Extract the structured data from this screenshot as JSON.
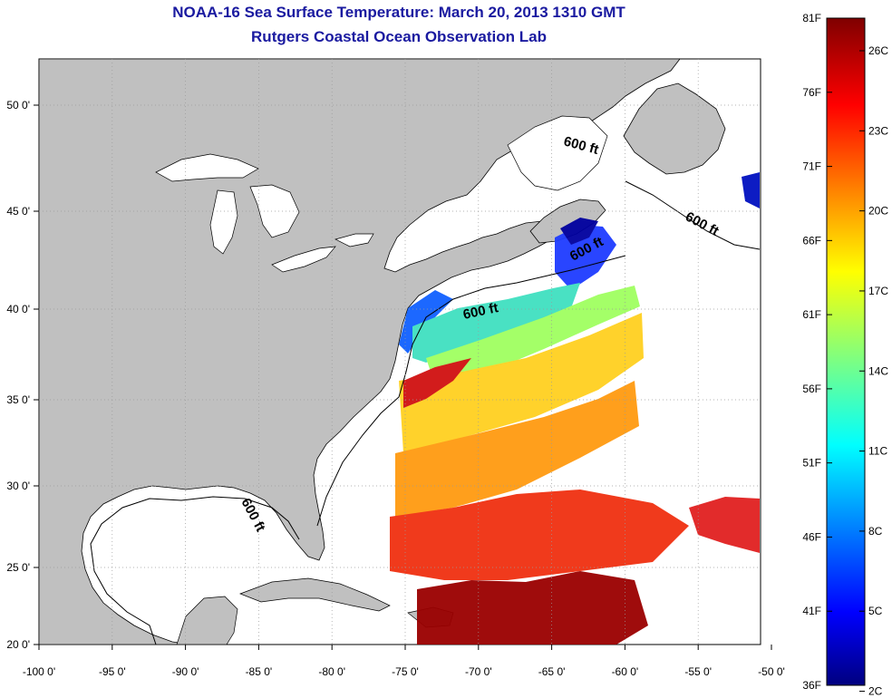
{
  "title": {
    "line1": "NOAA-16 Sea Surface Temperature:  March 20, 2013 1310 GMT",
    "line2": "Rutgers Coastal Ocean Observation Lab"
  },
  "map": {
    "lon_ticks": [
      "-100 0'",
      "-95 0'",
      "-90 0'",
      "-85 0'",
      "-80 0'",
      "-75 0'",
      "-70 0'",
      "-65 0'",
      "-60 0'",
      "-55 0'",
      "-50 0'"
    ],
    "lat_ticks": [
      "50 0'",
      "45 0'",
      "40 0'",
      "35 0'",
      "30 0'",
      "25 0'",
      "20 0'"
    ],
    "isobath_label": "600 ft",
    "colors": {
      "land": "#c0c0c0",
      "ocean_no_data": "#ffffff"
    }
  },
  "colorbar": {
    "fahrenheit_labels": [
      "81F",
      "76F",
      "71F",
      "66F",
      "61F",
      "56F",
      "51F",
      "46F",
      "41F",
      "36F"
    ],
    "celsius_labels": [
      "26C",
      "23C",
      "20C",
      "17C",
      "14C",
      "11C",
      "8C",
      "5C",
      "2C"
    ],
    "range_f": [
      36,
      81
    ],
    "colormap": "jet"
  }
}
